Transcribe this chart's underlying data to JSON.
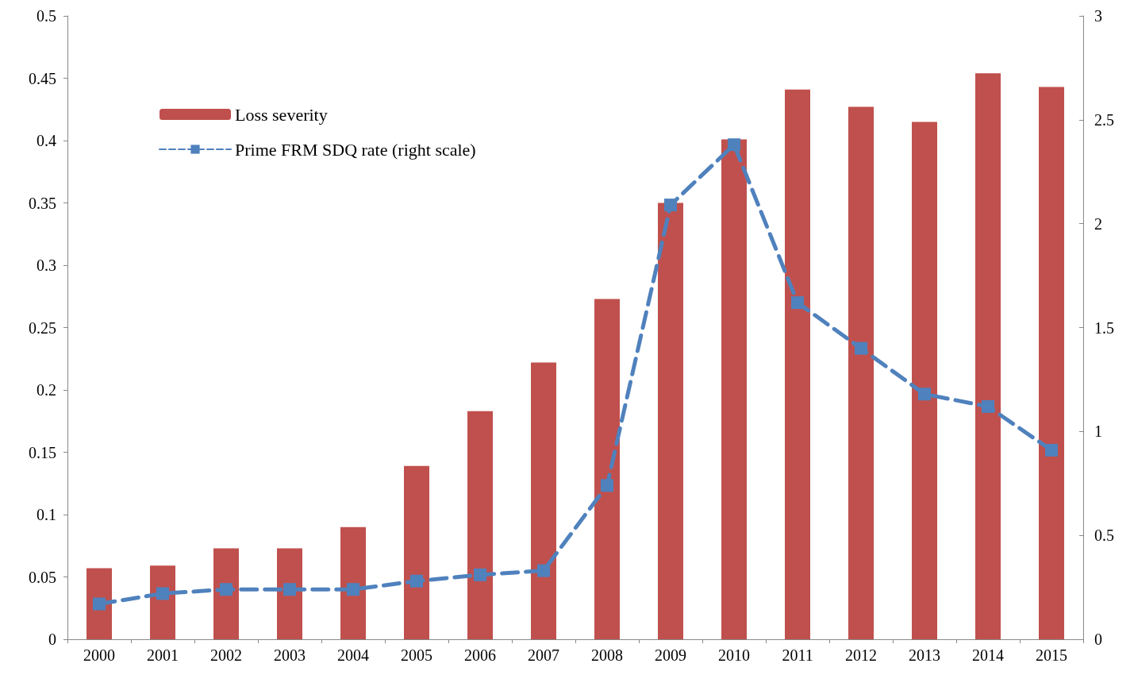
{
  "chart_data": {
    "type": "bar",
    "categories": [
      "2000",
      "2001",
      "2002",
      "2003",
      "2004",
      "2005",
      "2006",
      "2007",
      "2008",
      "2009",
      "2010",
      "2011",
      "2012",
      "2013",
      "2014",
      "2015"
    ],
    "series": [
      {
        "name": "Loss severity",
        "color": "#c0504d",
        "values": [
          0.057,
          0.059,
          0.073,
          0.073,
          0.09,
          0.139,
          0.183,
          0.222,
          0.273,
          0.35,
          0.401,
          0.441,
          0.427,
          0.415,
          0.454,
          0.443
        ]
      },
      {
        "name": "Prime FRM SDQ rate (right scale)",
        "type": "line",
        "axis": "y2",
        "color": "#4f81bd",
        "marker": "square",
        "line_style": "dashed",
        "values": [
          0.17,
          0.22,
          0.24,
          0.24,
          0.24,
          0.28,
          0.31,
          0.33,
          0.74,
          2.09,
          2.38,
          1.62,
          1.4,
          1.18,
          1.12,
          0.91
        ]
      }
    ],
    "ylim": [
      0,
      0.5
    ],
    "yticks": [
      0,
      0.05,
      0.1,
      0.15,
      0.2,
      0.25,
      0.3,
      0.35,
      0.4,
      0.45,
      0.5
    ],
    "y2lim": [
      0,
      3
    ],
    "y2ticks": [
      0,
      0.5,
      1,
      1.5,
      2,
      2.5,
      3
    ],
    "grid": false,
    "legend": "top left"
  }
}
